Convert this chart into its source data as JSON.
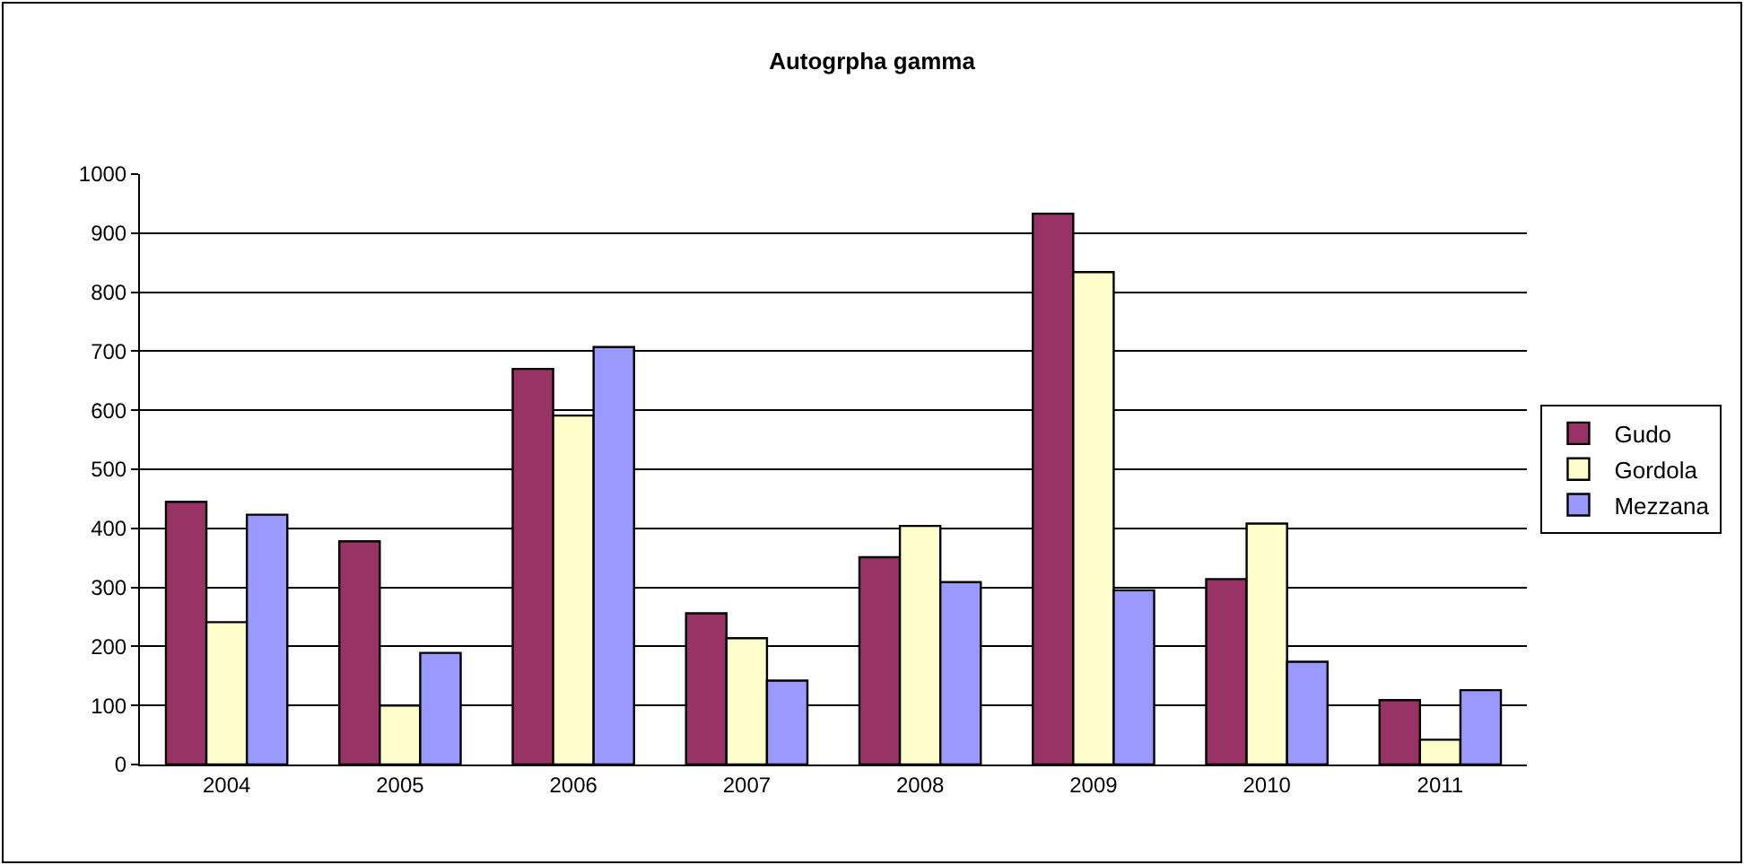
{
  "chart_data": {
    "type": "bar",
    "title": "Autogrpha gamma",
    "categories": [
      "2004",
      "2005",
      "2006",
      "2007",
      "2008",
      "2009",
      "2010",
      "2011"
    ],
    "series": [
      {
        "name": "Gudo",
        "color": "#993366",
        "values": [
          445,
          378,
          670,
          256,
          351,
          933,
          314,
          109
        ]
      },
      {
        "name": "Gordola",
        "color": "#ffffcc",
        "values": [
          241,
          100,
          591,
          214,
          404,
          834,
          408,
          42
        ]
      },
      {
        "name": "Mezzana",
        "color": "#9999ff",
        "values": [
          423,
          189,
          707,
          142,
          309,
          295,
          174,
          126
        ]
      }
    ],
    "ylim": [
      0,
      1000
    ],
    "yticks": [
      0,
      100,
      200,
      300,
      400,
      500,
      600,
      700,
      800,
      900,
      1000
    ],
    "grid": "y",
    "legend": "right"
  }
}
